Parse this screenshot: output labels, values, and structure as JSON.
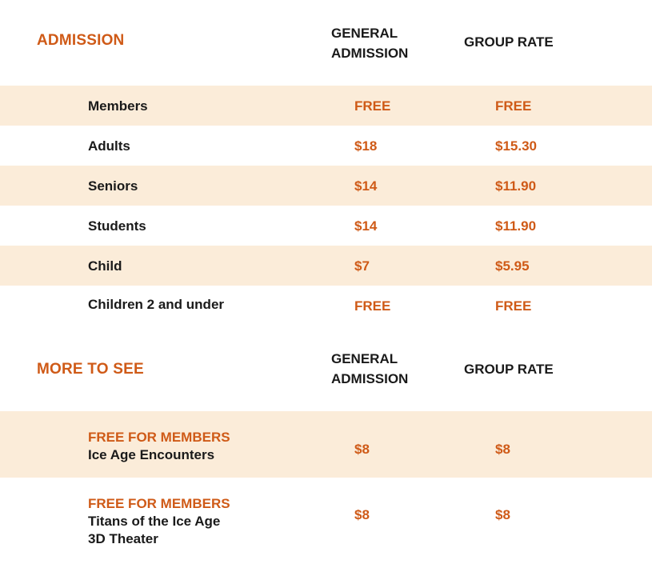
{
  "admission": {
    "title": "ADMISSION",
    "col_general_line1": "GENERAL",
    "col_general_line2": "ADMISSION",
    "col_group": "GROUP RATE",
    "rows": [
      {
        "label": "Members",
        "general": "FREE",
        "group": "FREE"
      },
      {
        "label": "Adults",
        "general": "$18",
        "group": "$15.30"
      },
      {
        "label": "Seniors",
        "general": "$14",
        "group": "$11.90"
      },
      {
        "label": "Students",
        "general": "$14",
        "group": "$11.90"
      },
      {
        "label": "Child",
        "general": "$7",
        "group": "$5.95"
      },
      {
        "label": "Children 2 and under",
        "general": "FREE",
        "group": "FREE"
      }
    ]
  },
  "more": {
    "title": "MORE TO SEE",
    "col_general_line1": "GENERAL",
    "col_general_line2": "ADMISSION",
    "col_group": "GROUP RATE",
    "rows": [
      {
        "tag": "FREE FOR MEMBERS",
        "name_line1": "Ice Age Encounters",
        "name_line2": "",
        "general": "$8",
        "group": "$8"
      },
      {
        "tag": "FREE FOR MEMBERS",
        "name_line1": "Titans of the Ice Age",
        "name_line2": "3D Theater",
        "general": "$8",
        "group": "$8"
      }
    ]
  },
  "colors": {
    "accent": "#cf5a17",
    "row_shade": "#fbecd9",
    "text": "#1a1a1a"
  }
}
